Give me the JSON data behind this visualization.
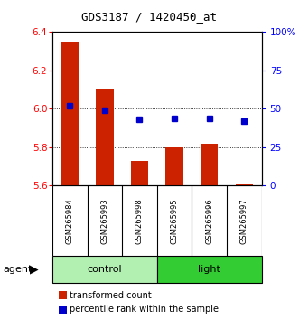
{
  "title": "GDS3187 / 1420450_at",
  "samples": [
    "GSM265984",
    "GSM265993",
    "GSM265998",
    "GSM265995",
    "GSM265996",
    "GSM265997"
  ],
  "red_values": [
    6.35,
    6.1,
    5.73,
    5.8,
    5.82,
    5.61
  ],
  "blue_percentiles": [
    52,
    49,
    43,
    44,
    44,
    42
  ],
  "bar_base": 5.6,
  "ylim": [
    5.6,
    6.4
  ],
  "yticks": [
    5.6,
    5.8,
    6.0,
    6.2,
    6.4
  ],
  "grid_lines": [
    5.8,
    6.0,
    6.2
  ],
  "y2ticks": [
    0,
    25,
    50,
    75,
    100
  ],
  "y2labels": [
    "0",
    "25",
    "50",
    "75",
    "100%"
  ],
  "groups": [
    {
      "label": "control",
      "indices": [
        0,
        1,
        2
      ],
      "light_color": "#b2f0b2",
      "dark_color": "#33cc33"
    },
    {
      "label": "light",
      "indices": [
        3,
        4,
        5
      ],
      "light_color": "#33cc33",
      "dark_color": "#33cc33"
    }
  ],
  "agent_label": "agent",
  "legend_items": [
    {
      "label": "transformed count",
      "color": "#cc2200"
    },
    {
      "label": "percentile rank within the sample",
      "color": "#0000cc"
    }
  ],
  "bar_color": "#cc2200",
  "dot_color": "#0000cc",
  "sample_area_color": "#c8c8c8",
  "bar_width": 0.5
}
